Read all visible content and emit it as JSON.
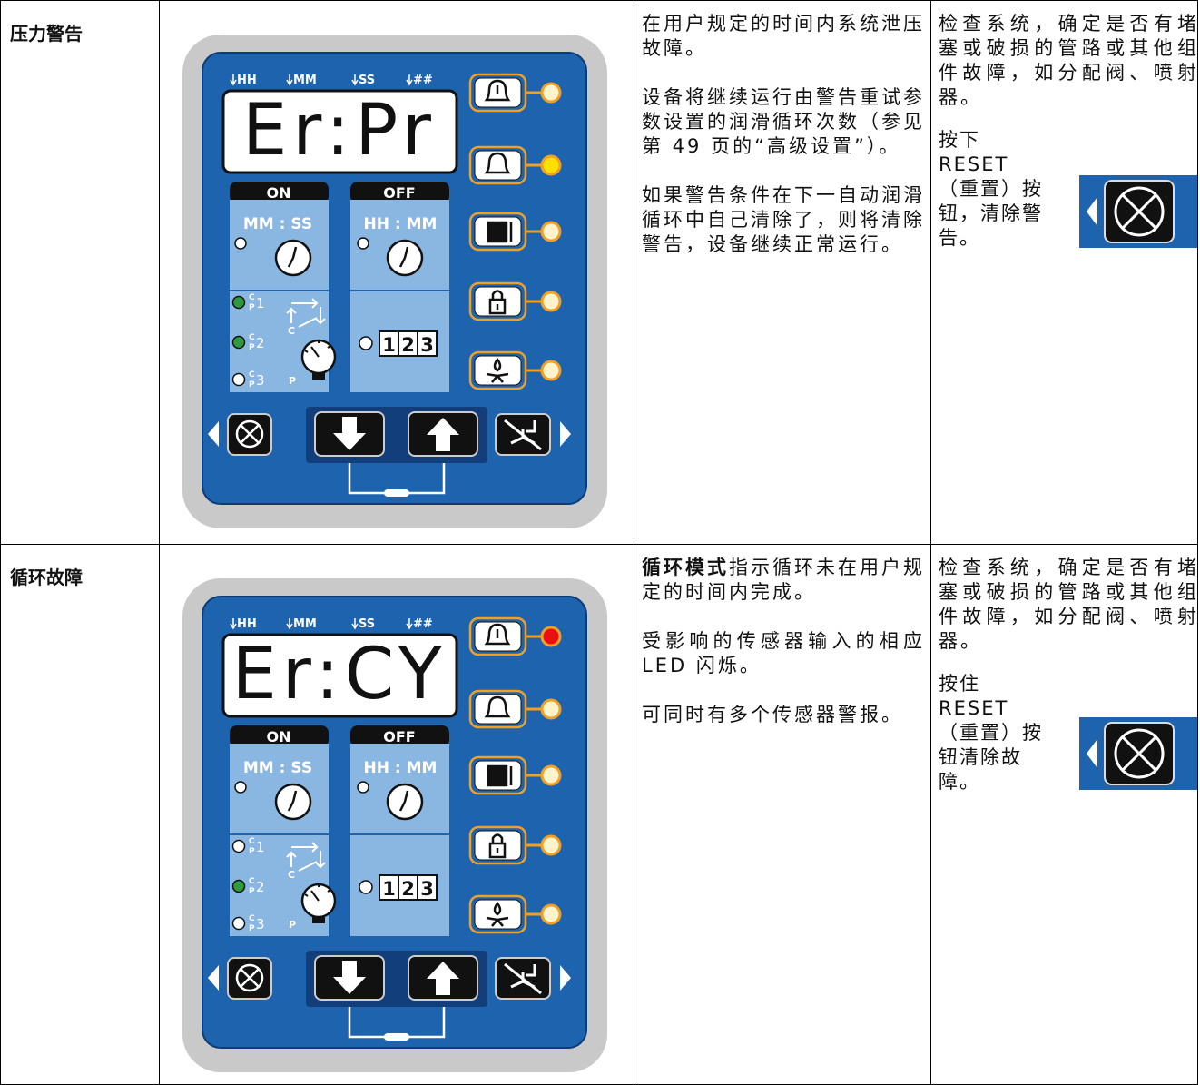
{
  "panel": {
    "time_labels": [
      "HH",
      "MM",
      "SS",
      "##"
    ],
    "on": "ON",
    "off": "OFF",
    "on_unit": "MM : SS",
    "off_unit": "HH : MM",
    "channels": [
      "1",
      "2",
      "3"
    ],
    "channel_c": "C",
    "channel_p": "P",
    "cycle_c": "C",
    "pressure_p": "P",
    "counter": [
      "1",
      "2",
      "3"
    ]
  },
  "rows": [
    {
      "name": "压力警告",
      "display": "Er:Pr",
      "alarm_leds": [
        "#fff3cc",
        "#ffe000",
        "#fff3cc",
        "#fff3cc",
        "#fff3cc"
      ],
      "channel_leds": [
        "#2f9a40",
        "#2f9a40",
        "#ffffff"
      ],
      "description": [
        [
          {
            "text": "在用户规定的时间内系统泄压故障。"
          }
        ],
        [
          {
            "text": "设备将继续运行由警告重试参数设置的润滑循环次数（参见第 49 页的“高级设置”）。"
          }
        ],
        [
          {
            "text": "如果警告条件在下一自动润滑循环中自己清除了，则将清除警告，设备继续正常运行。"
          }
        ]
      ],
      "action": "检查系统，确定是否有堵塞或破损的管路或其他组件故障，如分配阀、喷射器。",
      "instruction": [
        "按下",
        "RESET",
        "（重置）按",
        "钮，清除警",
        "告。"
      ]
    },
    {
      "name": "循环故障",
      "display": "Er:CY",
      "alarm_leds": [
        "#e81010",
        "#fff3cc",
        "#fff3cc",
        "#fff3cc",
        "#fff3cc"
      ],
      "channel_leds": [
        "#ffffff",
        "#2f9a40",
        "#ffffff"
      ],
      "description": [
        [
          {
            "text": "循环模式",
            "bold": true
          },
          {
            "text": "指示循环未在用户规定的时间内完成。"
          }
        ],
        [
          {
            "text": "受影响的传感器输入的相应 LED 闪烁。"
          }
        ],
        [
          {
            "text": "可同时有多个传感器警报。"
          }
        ]
      ],
      "action": "检查系统，确定是否有堵塞或破损的管路或其他组件故障，如分配阀、喷射器。",
      "instruction": [
        "按住",
        "RESET",
        "（重置）按",
        "钮清除故",
        "障。"
      ]
    }
  ]
}
